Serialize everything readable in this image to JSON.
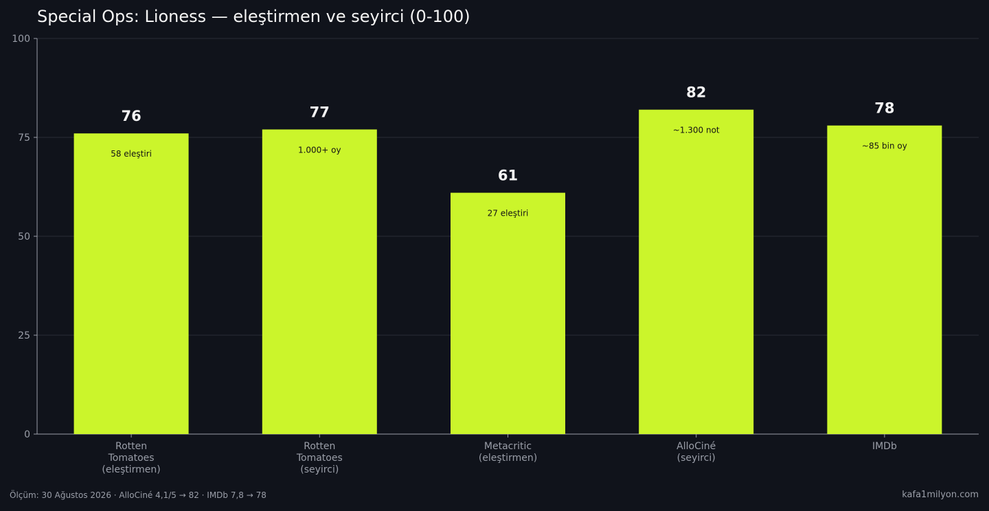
{
  "chart_data": {
    "type": "bar",
    "title": "Special Ops: Lioness — eleştirmen ve seyirci (0-100)",
    "categories": [
      [
        "Rotten",
        "Tomatoes",
        "(eleştirmen)"
      ],
      [
        "Rotten",
        "Tomatoes",
        "(seyirci)"
      ],
      [
        "Metacritic",
        "(eleştirmen)"
      ],
      [
        "AlloCiné",
        "(seyirci)"
      ],
      [
        "IMDb"
      ]
    ],
    "values": [
      76,
      77,
      61,
      82,
      78
    ],
    "value_labels": [
      "76",
      "77",
      "61",
      "82",
      "78"
    ],
    "bar_notes": [
      "58 eleştiri",
      "1.000+ oy",
      "27 eleştiri",
      "~1.300 not",
      "~85 bin oy"
    ],
    "ylim": [
      0,
      100
    ],
    "yticks": [
      0,
      25,
      50,
      75,
      100
    ],
    "ytick_labels": [
      "0",
      "25",
      "50",
      "75",
      "100"
    ],
    "grid": true,
    "bar_color": "#cbf52b",
    "background_color": "#10131b"
  },
  "footer": {
    "note": "Ölçüm: 30 Ağustos 2026 · AlloCiné 4,1/5 → 82 · IMDb 7,8 → 78",
    "brand": "kafa1milyon.com"
  }
}
